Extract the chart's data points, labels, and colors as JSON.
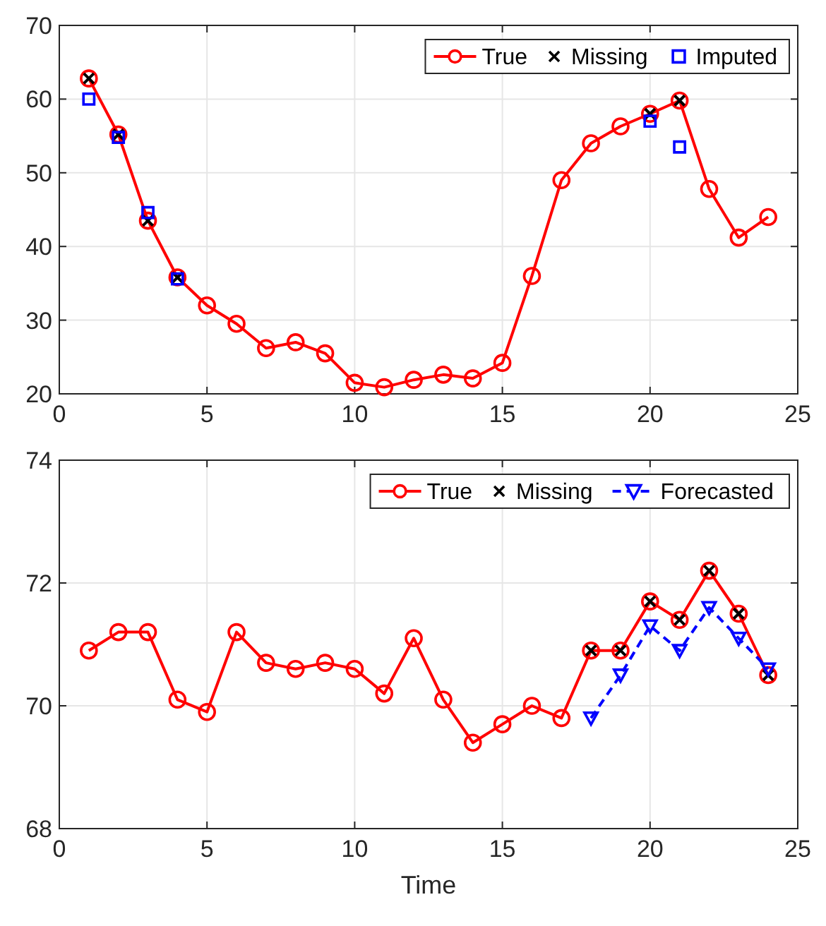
{
  "chart_data": [
    {
      "type": "line",
      "xlim": [
        0,
        25
      ],
      "xticks": [
        0,
        5,
        10,
        15,
        20,
        25
      ],
      "ylim": [
        20,
        70
      ],
      "yticks": [
        20,
        30,
        40,
        50,
        60,
        70
      ],
      "grid": true,
      "legend": "top right",
      "series": [
        {
          "name": "True",
          "type": "line",
          "color": "#ff0000",
          "marker": "circle",
          "line_style": "solid",
          "x": [
            1,
            2,
            3,
            4,
            5,
            6,
            7,
            8,
            9,
            10,
            11,
            12,
            13,
            14,
            15,
            16,
            17,
            18,
            19,
            20,
            21,
            22,
            23,
            24
          ],
          "values": [
            62.8,
            55.2,
            43.5,
            35.8,
            32,
            29.5,
            26.2,
            27,
            25.5,
            21.5,
            20.9,
            21.9,
            22.6,
            22.1,
            24.2,
            36,
            49,
            54,
            56.3,
            58,
            59.8,
            47.8,
            41.2,
            44
          ]
        },
        {
          "name": "Missing",
          "type": "scatter",
          "color": "#000000",
          "marker": "cross",
          "x": [
            1,
            2,
            3,
            4,
            20,
            21
          ],
          "values": [
            62.8,
            55.2,
            43.5,
            35.8,
            58,
            59.8
          ]
        },
        {
          "name": "Imputed",
          "type": "scatter",
          "color": "#0000ff",
          "marker": "square",
          "x": [
            1,
            2,
            3,
            4,
            20,
            21
          ],
          "values": [
            60,
            54.8,
            44.6,
            35.6,
            57,
            53.5
          ]
        }
      ]
    },
    {
      "type": "line",
      "xlabel": "Time",
      "xlim": [
        0,
        25
      ],
      "xticks": [
        0,
        5,
        10,
        15,
        20,
        25
      ],
      "ylim": [
        68,
        74
      ],
      "yticks": [
        68,
        70,
        72,
        74
      ],
      "grid": true,
      "legend": "top right",
      "series": [
        {
          "name": "True",
          "type": "line",
          "color": "#ff0000",
          "marker": "circle",
          "line_style": "solid",
          "x": [
            1,
            2,
            3,
            4,
            5,
            6,
            7,
            8,
            9,
            10,
            11,
            12,
            13,
            14,
            15,
            16,
            17,
            18,
            19,
            20,
            21,
            22,
            23,
            24
          ],
          "values": [
            70.9,
            71.2,
            71.2,
            70.1,
            69.9,
            71.2,
            70.7,
            70.6,
            70.7,
            70.6,
            70.2,
            71.1,
            70.1,
            69.4,
            69.7,
            70,
            69.8,
            70.9,
            70.9,
            71.7,
            71.4,
            72.2,
            71.5,
            70.5
          ]
        },
        {
          "name": "Missing",
          "type": "scatter",
          "color": "#000000",
          "marker": "cross",
          "x": [
            18,
            19,
            20,
            21,
            22,
            23,
            24
          ],
          "values": [
            70.9,
            70.9,
            71.7,
            71.4,
            72.2,
            71.5,
            70.5
          ]
        },
        {
          "name": "Forecasted",
          "type": "line",
          "color": "#0000ff",
          "marker": "triangle",
          "line_style": "dashed",
          "x": [
            18,
            19,
            20,
            21,
            22,
            23,
            24
          ],
          "values": [
            69.8,
            70.5,
            71.3,
            70.9,
            71.6,
            71.1,
            70.6
          ]
        }
      ]
    }
  ]
}
